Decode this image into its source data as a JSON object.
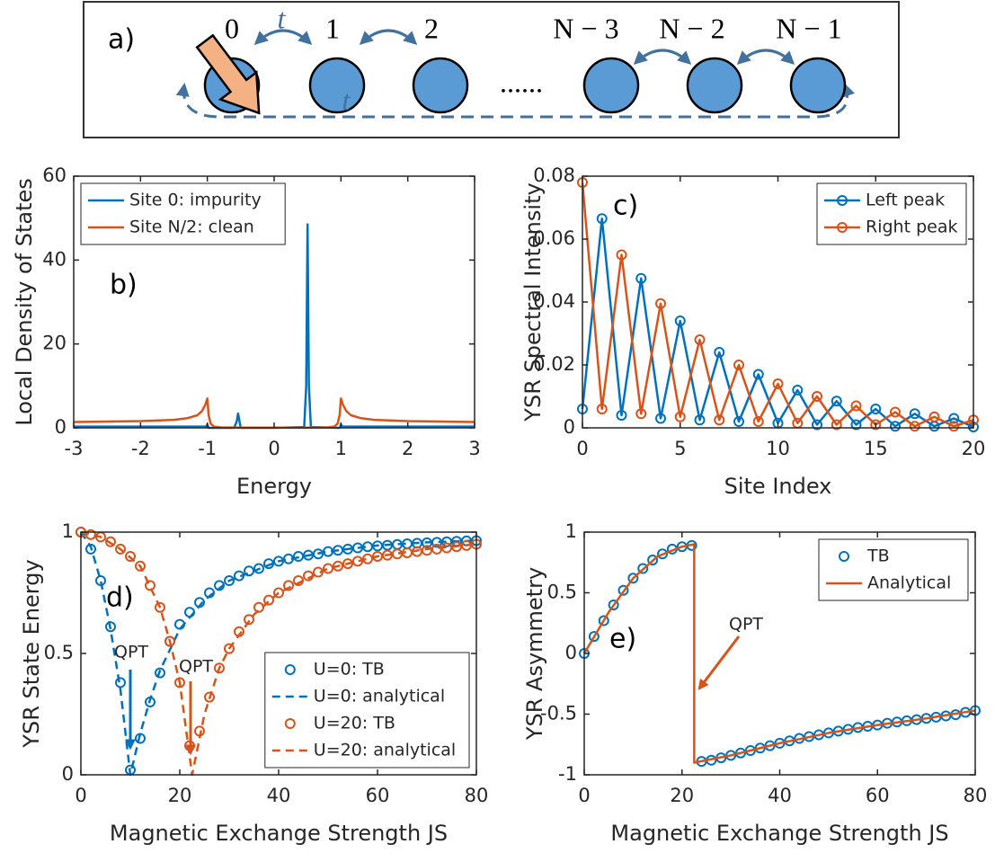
{
  "diagram": {
    "panel_label": "a)",
    "nodes": [
      "0",
      "1",
      "2",
      "N − 3",
      "N − 2",
      "N − 1"
    ],
    "hopping": [
      "t",
      "t"
    ],
    "ellipsis": "......"
  },
  "chart_data": [
    {
      "type": "line",
      "panel_label": "b)",
      "x_label": "Energy",
      "y_label": "Local Density of States",
      "xlim": [
        -3,
        3
      ],
      "xticks": [
        -3,
        -2,
        -1,
        0,
        1,
        2,
        3
      ],
      "ylim": [
        0,
        60
      ],
      "yticks": [
        0,
        20,
        40,
        60
      ],
      "grid": false,
      "legend": "upper left",
      "series": [
        {
          "name": "Site 0: impurity",
          "color": "#0072BD",
          "line": "solid",
          "marker": "none",
          "x": [
            -3,
            -1.02,
            -1,
            -0.98,
            -0.6,
            -0.56,
            -0.54,
            -0.5,
            0,
            0.45,
            0.48,
            0.5,
            0.52,
            0.55,
            0.98,
            1,
            1.02,
            3
          ],
          "values": [
            0.3,
            0.3,
            0.8,
            0,
            0,
            1.5,
            3.4,
            0,
            0,
            0.2,
            10,
            48.5,
            10,
            0.2,
            0,
            0.8,
            0.3,
            0.3
          ]
        },
        {
          "name": "Site N/2: clean",
          "color": "#D95319",
          "line": "solid",
          "marker": "none",
          "x": [
            -3,
            -2.5,
            -2,
            -1.5,
            -1.3,
            -1.15,
            -1.08,
            -1.03,
            -1,
            -0.98,
            -0.95,
            -0.9,
            -0.8,
            -0.5,
            0,
            0.5,
            0.8,
            0.9,
            0.95,
            0.98,
            1,
            1.03,
            1.08,
            1.15,
            1.3,
            1.5,
            2,
            2.5,
            3
          ],
          "values": [
            1.4,
            1.5,
            1.6,
            1.9,
            2.3,
            3,
            4,
            5.5,
            7,
            3,
            1,
            0.3,
            0.1,
            0.05,
            0.05,
            0.05,
            0.1,
            0.3,
            1,
            3,
            7,
            5.5,
            4,
            3,
            2.3,
            1.9,
            1.6,
            1.5,
            1.4
          ]
        }
      ]
    },
    {
      "type": "line",
      "panel_label": "c)",
      "x_label": "Site Index",
      "y_label": "YSR Spectral Intensity",
      "xlim": [
        0,
        20
      ],
      "xticks": [
        0,
        5,
        10,
        15,
        20
      ],
      "ylim": [
        0,
        0.08
      ],
      "yticks": [
        0,
        0.02,
        0.04,
        0.06,
        0.08
      ],
      "grid": false,
      "legend": "upper right",
      "series": [
        {
          "name": "Left peak",
          "color": "#0072BD",
          "line": "solid",
          "marker": "circle",
          "x": [
            0,
            1,
            2,
            3,
            4,
            5,
            6,
            7,
            8,
            9,
            10,
            11,
            12,
            13,
            14,
            15,
            16,
            17,
            18,
            19,
            20
          ],
          "values": [
            0.006,
            0.0665,
            0.004,
            0.0475,
            0.003,
            0.034,
            0.0025,
            0.024,
            0.002,
            0.017,
            0.0015,
            0.012,
            0.001,
            0.0085,
            0.001,
            0.006,
            0.0005,
            0.0045,
            0.0005,
            0.003,
            0.0003
          ]
        },
        {
          "name": "Right peak",
          "color": "#D95319",
          "line": "solid",
          "marker": "circle",
          "x": [
            0,
            1,
            2,
            3,
            4,
            5,
            6,
            7,
            8,
            9,
            10,
            11,
            12,
            13,
            14,
            15,
            16,
            17,
            18,
            19,
            20
          ],
          "values": [
            0.078,
            0.006,
            0.055,
            0.0045,
            0.0395,
            0.0035,
            0.028,
            0.0025,
            0.02,
            0.002,
            0.014,
            0.0015,
            0.01,
            0.001,
            0.007,
            0.001,
            0.005,
            0.0005,
            0.0035,
            0.0005,
            0.0025
          ]
        }
      ]
    },
    {
      "type": "line",
      "panel_label": "d)",
      "x_label": "Magnetic Exchange Strength JS",
      "y_label": "YSR State Energy",
      "annotations": [
        "QPT",
        "QPT"
      ],
      "xlim": [
        0,
        80
      ],
      "xticks": [
        0,
        20,
        40,
        60,
        80
      ],
      "ylim": [
        0,
        1
      ],
      "yticks": [
        0,
        0.5,
        1
      ],
      "grid": false,
      "legend": "lower right",
      "series": [
        {
          "name": "U=0: TB",
          "color": "#0072BD",
          "line": "none",
          "marker": "circle",
          "x": [
            0,
            2,
            4,
            6,
            8,
            10,
            12,
            14,
            16,
            18,
            20,
            22,
            24,
            26,
            28,
            30,
            32,
            34,
            36,
            38,
            40,
            42,
            44,
            46,
            48,
            50,
            52,
            54,
            56,
            58,
            60,
            62,
            64,
            66,
            68,
            70,
            72,
            74,
            76,
            78,
            80
          ],
          "values": [
            1,
            0.93,
            0.8,
            0.61,
            0.38,
            0.02,
            0.15,
            0.3,
            0.42,
            0.55,
            0.62,
            0.67,
            0.71,
            0.75,
            0.78,
            0.8,
            0.82,
            0.84,
            0.85,
            0.87,
            0.88,
            0.89,
            0.9,
            0.905,
            0.91,
            0.92,
            0.925,
            0.93,
            0.935,
            0.94,
            0.943,
            0.946,
            0.949,
            0.952,
            0.954,
            0.956,
            0.958,
            0.96,
            0.962,
            0.964,
            0.965
          ]
        },
        {
          "name": "U=0: analytical",
          "color": "#0072BD",
          "line": "dashed",
          "marker": "none",
          "x": [
            0,
            2,
            4,
            6,
            8,
            10,
            12,
            14,
            16,
            20,
            25,
            30,
            40,
            50,
            60,
            70,
            80
          ],
          "values": [
            1,
            0.94,
            0.8,
            0.6,
            0.35,
            0,
            0.17,
            0.31,
            0.43,
            0.6,
            0.72,
            0.8,
            0.88,
            0.92,
            0.945,
            0.958,
            0.965
          ]
        },
        {
          "name": "U=20: TB",
          "color": "#D95319",
          "line": "none",
          "marker": "circle",
          "x": [
            0,
            2,
            4,
            6,
            8,
            10,
            12,
            14,
            16,
            18,
            20,
            22,
            24,
            26,
            28,
            30,
            32,
            34,
            36,
            38,
            40,
            42,
            44,
            46,
            48,
            50,
            52,
            54,
            56,
            58,
            60,
            62,
            64,
            66,
            68,
            70,
            72,
            74,
            76,
            78,
            80
          ],
          "values": [
            1,
            0.99,
            0.98,
            0.96,
            0.93,
            0.9,
            0.86,
            0.78,
            0.69,
            0.55,
            0.38,
            0.12,
            0.18,
            0.32,
            0.44,
            0.52,
            0.59,
            0.64,
            0.69,
            0.72,
            0.75,
            0.78,
            0.8,
            0.82,
            0.835,
            0.85,
            0.86,
            0.87,
            0.88,
            0.89,
            0.9,
            0.905,
            0.91,
            0.915,
            0.92,
            0.925,
            0.93,
            0.935,
            0.94,
            0.945,
            0.95
          ]
        },
        {
          "name": "U=20: analytical",
          "color": "#D95319",
          "line": "dashed",
          "marker": "none",
          "x": [
            0,
            4,
            8,
            12,
            16,
            18,
            20,
            22.5,
            25,
            28,
            30,
            35,
            40,
            50,
            60,
            70,
            80
          ],
          "values": [
            1,
            0.98,
            0.93,
            0.86,
            0.69,
            0.55,
            0.38,
            0,
            0.25,
            0.44,
            0.52,
            0.66,
            0.75,
            0.85,
            0.9,
            0.93,
            0.95
          ]
        }
      ]
    },
    {
      "type": "line",
      "panel_label": "e)",
      "x_label": "Magnetic Exchange Strength JS",
      "y_label": "YSR Asymmetry",
      "annotations": [
        "QPT"
      ],
      "xlim": [
        0,
        80
      ],
      "xticks": [
        0,
        20,
        40,
        60,
        80
      ],
      "ylim": [
        -1,
        1
      ],
      "yticks": [
        -1,
        -0.5,
        0,
        0.5,
        1
      ],
      "grid": false,
      "legend": "upper right",
      "series": [
        {
          "name": "TB",
          "color": "#0072BD",
          "line": "none",
          "marker": "circle",
          "x": [
            0,
            2,
            4,
            6,
            8,
            10,
            12,
            14,
            16,
            18,
            20,
            22,
            24,
            26,
            28,
            30,
            32,
            34,
            36,
            38,
            40,
            42,
            44,
            46,
            48,
            50,
            52,
            54,
            56,
            58,
            60,
            62,
            64,
            66,
            68,
            70,
            72,
            74,
            76,
            78,
            80
          ],
          "values": [
            0,
            0.14,
            0.27,
            0.4,
            0.52,
            0.62,
            0.7,
            0.77,
            0.82,
            0.86,
            0.88,
            0.89,
            -0.89,
            -0.88,
            -0.86,
            -0.84,
            -0.82,
            -0.8,
            -0.78,
            -0.76,
            -0.74,
            -0.72,
            -0.7,
            -0.685,
            -0.67,
            -0.655,
            -0.64,
            -0.625,
            -0.61,
            -0.6,
            -0.59,
            -0.575,
            -0.565,
            -0.555,
            -0.545,
            -0.535,
            -0.525,
            -0.515,
            -0.505,
            -0.485,
            -0.47
          ]
        },
        {
          "name": "Analytical",
          "color": "#D95319",
          "line": "solid",
          "marker": "none",
          "x": [
            0,
            5,
            10,
            15,
            20,
            22.5,
            22.5,
            30,
            40,
            50,
            60,
            70,
            80
          ],
          "values": [
            0,
            0.34,
            0.62,
            0.8,
            0.88,
            0.9,
            -0.9,
            -0.84,
            -0.74,
            -0.655,
            -0.59,
            -0.535,
            -0.47
          ]
        }
      ]
    }
  ]
}
